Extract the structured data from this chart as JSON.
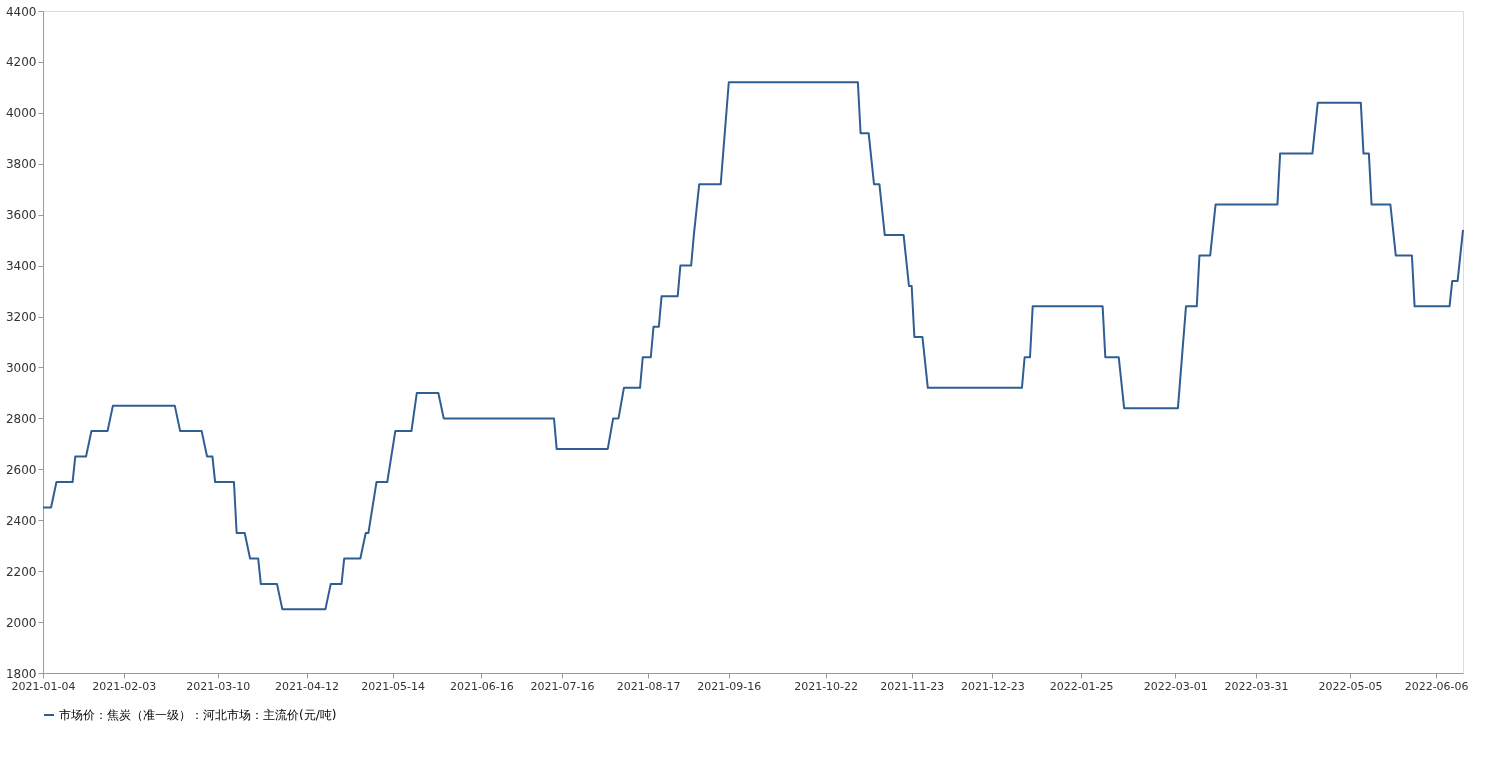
{
  "chart_data": {
    "type": "line",
    "x": [
      "2021-01-04",
      "2021-01-07",
      "2021-01-09",
      "2021-01-15",
      "2021-01-16",
      "2021-01-20",
      "2021-01-22",
      "2021-01-28",
      "2021-01-30",
      "2021-02-22",
      "2021-02-24",
      "2021-03-04",
      "2021-03-06",
      "2021-03-08",
      "2021-03-09",
      "2021-03-16",
      "2021-03-17",
      "2021-03-20",
      "2021-03-22",
      "2021-03-25",
      "2021-03-26",
      "2021-04-01",
      "2021-04-03",
      "2021-04-19",
      "2021-04-21",
      "2021-04-25",
      "2021-04-26",
      "2021-05-02",
      "2021-05-04",
      "2021-05-05",
      "2021-05-08",
      "2021-05-12",
      "2021-05-15",
      "2021-05-21",
      "2021-05-23",
      "2021-05-31",
      "2021-06-02",
      "2021-07-13",
      "2021-07-14",
      "2021-08-02",
      "2021-08-04",
      "2021-08-06",
      "2021-08-08",
      "2021-08-14",
      "2021-08-15",
      "2021-08-18",
      "2021-08-19",
      "2021-08-21",
      "2021-08-22",
      "2021-08-28",
      "2021-08-29",
      "2021-09-02",
      "2021-09-03",
      "2021-09-05",
      "2021-09-13",
      "2021-09-16",
      "2021-11-03",
      "2021-11-04",
      "2021-11-07",
      "2021-11-09",
      "2021-11-11",
      "2021-11-13",
      "2021-11-20",
      "2021-11-22",
      "2021-11-23",
      "2021-11-24",
      "2021-11-27",
      "2021-11-29",
      "2022-01-03",
      "2022-01-04",
      "2022-01-06",
      "2022-01-07",
      "2022-02-02",
      "2022-02-03",
      "2022-02-08",
      "2022-02-10",
      "2022-03-02",
      "2022-03-05",
      "2022-03-09",
      "2022-03-10",
      "2022-03-14",
      "2022-03-16",
      "2022-04-08",
      "2022-04-09",
      "2022-04-21",
      "2022-04-23",
      "2022-05-09",
      "2022-05-10",
      "2022-05-12",
      "2022-05-13",
      "2022-05-20",
      "2022-05-22",
      "2022-05-28",
      "2022-05-29",
      "2022-06-11",
      "2022-06-12",
      "2022-06-14",
      "2022-06-16"
    ],
    "series": [
      {
        "name": "市场价：焦炭（准一级）：河北市场：主流价(元/吨)",
        "color": "#2e5e92",
        "values": [
          2450,
          2450,
          2550,
          2550,
          2650,
          2650,
          2750,
          2750,
          2850,
          2850,
          2750,
          2750,
          2650,
          2650,
          2550,
          2550,
          2350,
          2350,
          2250,
          2250,
          2150,
          2150,
          2050,
          2050,
          2150,
          2150,
          2250,
          2250,
          2350,
          2350,
          2550,
          2550,
          2750,
          2750,
          2900,
          2900,
          2800,
          2800,
          2680,
          2680,
          2800,
          2800,
          2920,
          2920,
          3040,
          3040,
          3160,
          3160,
          3280,
          3280,
          3400,
          3400,
          3520,
          3720,
          3720,
          4120,
          4120,
          3920,
          3920,
          3720,
          3720,
          3520,
          3520,
          3320,
          3320,
          3120,
          3120,
          2920,
          2920,
          3040,
          3040,
          3240,
          3240,
          3040,
          3040,
          2840,
          2840,
          3240,
          3240,
          3440,
          3440,
          3640,
          3640,
          3840,
          3840,
          4040,
          4040,
          3840,
          3840,
          3640,
          3640,
          3440,
          3440,
          3240,
          3240,
          3340,
          3340,
          3540
        ]
      }
    ],
    "xlim": [
      "2021-01-04",
      "2022-06-16"
    ],
    "xticks": [
      "2021-01-04",
      "2021-02-03",
      "2021-03-10",
      "2021-04-12",
      "2021-05-14",
      "2021-06-16",
      "2021-07-16",
      "2021-08-17",
      "2021-09-16",
      "2021-10-22",
      "2021-11-23",
      "2021-12-23",
      "2022-01-25",
      "2022-03-01",
      "2022-03-31",
      "2022-05-05",
      "2022-06-06"
    ],
    "ylim": [
      1800,
      4400
    ],
    "yticks": [
      1800,
      2000,
      2200,
      2400,
      2600,
      2800,
      3000,
      3200,
      3400,
      3600,
      3800,
      4000,
      4200,
      4400
    ],
    "grid": false,
    "legend": "bottom",
    "line_style": "solid",
    "marker": "none"
  }
}
